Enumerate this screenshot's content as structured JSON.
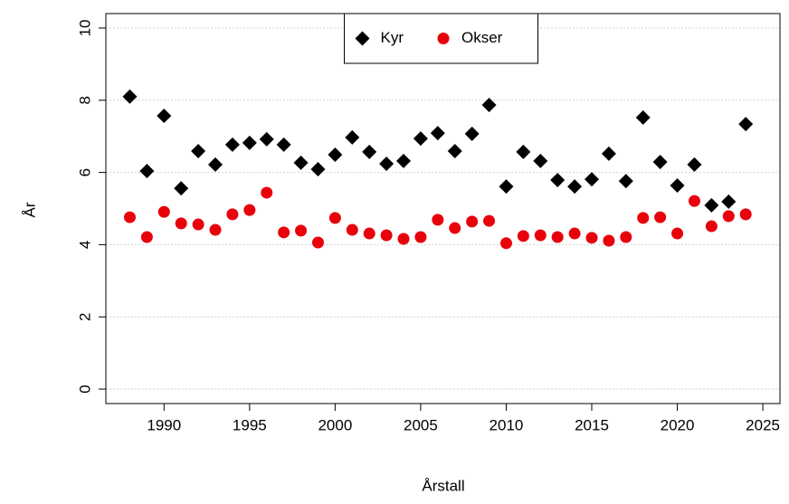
{
  "chart_data": {
    "type": "scatter",
    "xlabel": "Årstall",
    "ylabel": "År",
    "x": [
      1988,
      1989,
      1990,
      1991,
      1992,
      1993,
      1994,
      1995,
      1996,
      1997,
      1998,
      1999,
      2000,
      2001,
      2002,
      2003,
      2004,
      2005,
      2006,
      2007,
      2008,
      2009,
      2010,
      2011,
      2012,
      2013,
      2014,
      2015,
      2016,
      2017,
      2018,
      2019,
      2020,
      2021,
      2022,
      2023,
      2024
    ],
    "series": [
      {
        "name": "Kyr",
        "color": "#000000",
        "marker": "diamond",
        "values": [
          8.1,
          6.04,
          7.57,
          5.56,
          6.59,
          6.22,
          6.77,
          6.82,
          6.92,
          6.77,
          6.27,
          6.09,
          6.49,
          6.97,
          6.57,
          6.24,
          6.32,
          6.94,
          7.09,
          6.59,
          7.07,
          7.87,
          5.61,
          6.57,
          6.32,
          5.79,
          5.61,
          5.81,
          6.52,
          5.76,
          7.52,
          6.29,
          5.64,
          6.22,
          5.09,
          5.19,
          7.34
        ]
      },
      {
        "name": "Okser",
        "color": "#e8000b",
        "marker": "circle",
        "values": [
          4.76,
          4.21,
          4.91,
          4.59,
          4.56,
          4.41,
          4.84,
          4.96,
          5.44,
          4.34,
          4.39,
          4.06,
          4.74,
          4.41,
          4.31,
          4.26,
          4.16,
          4.21,
          4.69,
          4.46,
          4.64,
          4.66,
          4.04,
          4.24,
          4.26,
          4.21,
          4.31,
          4.19,
          4.11,
          4.21,
          4.74,
          4.76,
          4.31,
          5.21,
          4.51,
          4.79,
          4.84
        ]
      }
    ],
    "xlim": [
      1986.6,
      2026.0
    ],
    "xticks": [
      1990,
      1995,
      2000,
      2005,
      2010,
      2015,
      2020,
      2025
    ],
    "ylim": [
      -0.4,
      10.4
    ],
    "yticks": [
      0,
      2,
      4,
      6,
      8,
      10
    ],
    "grid": true,
    "legend": "top"
  }
}
